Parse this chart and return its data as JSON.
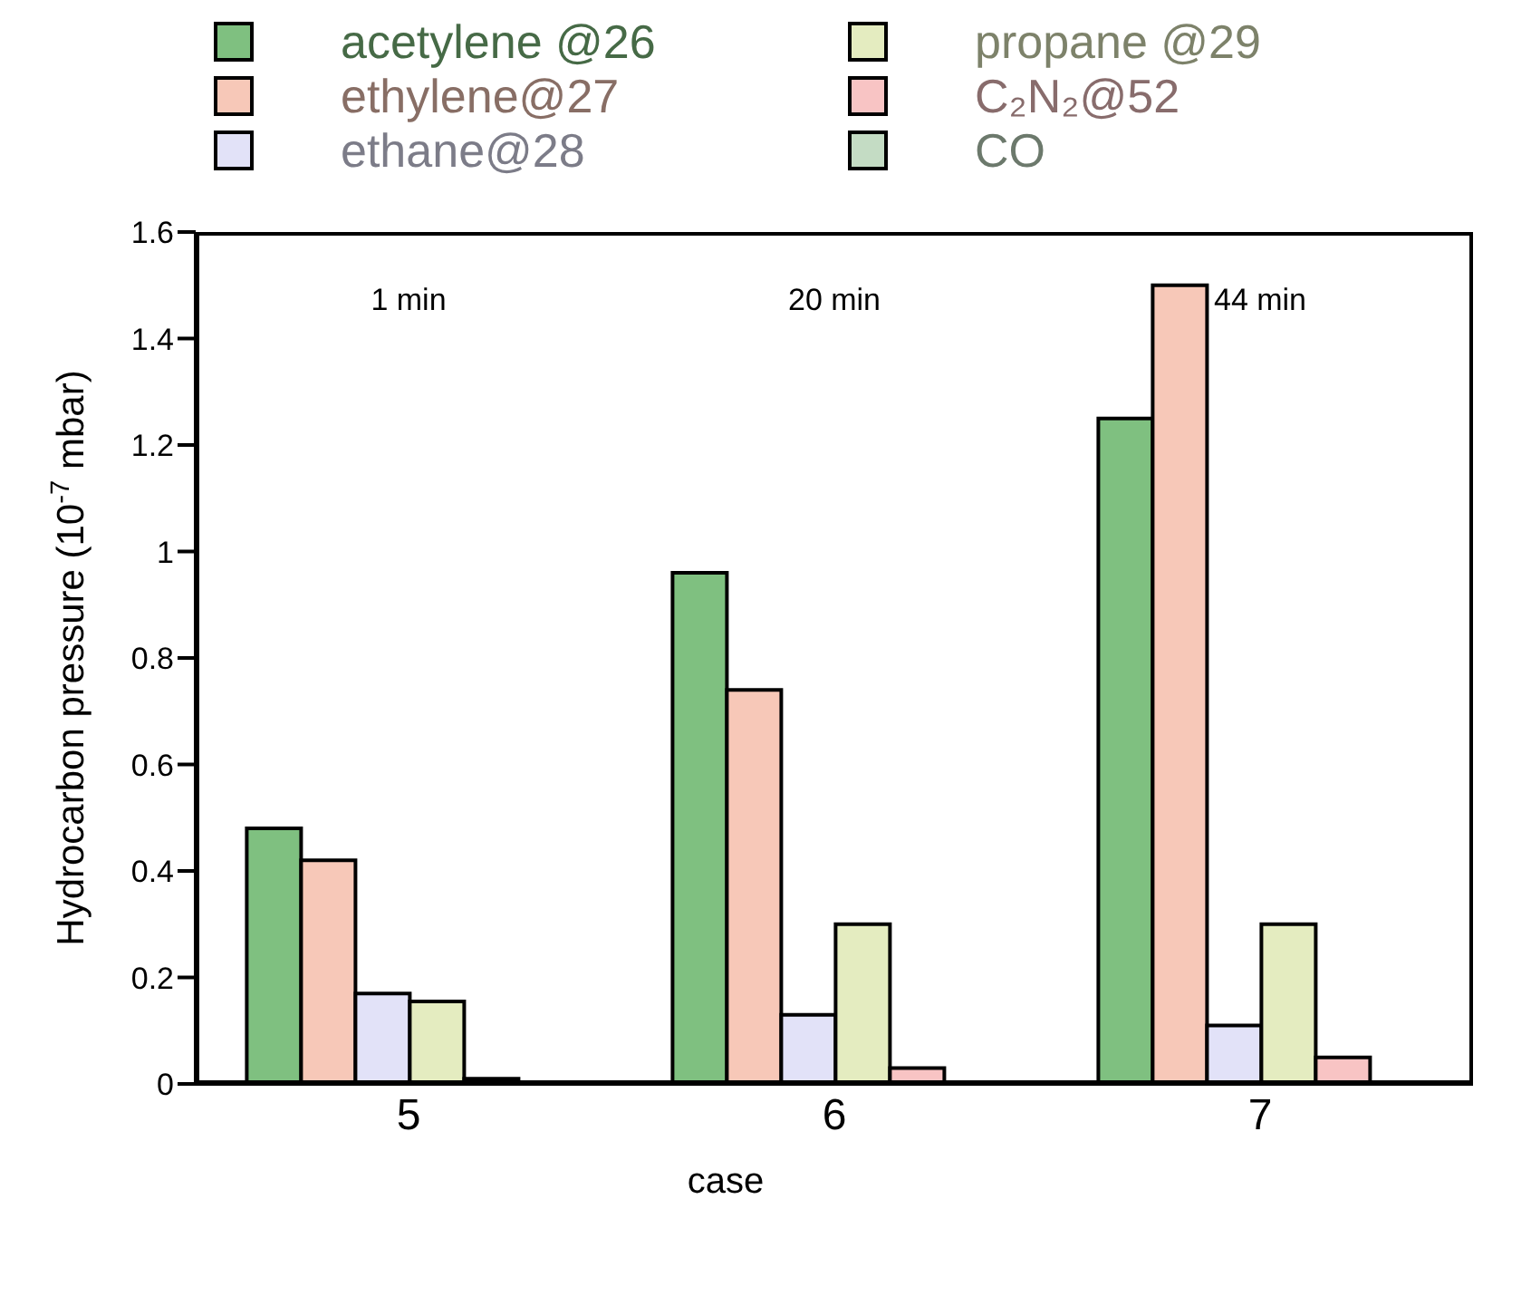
{
  "chart_data": {
    "type": "bar",
    "xlabel": "case",
    "ylabel": "Hydrocarbon pressure (10$^{-7}$ mbar)",
    "categories": [
      "5",
      "6",
      "7"
    ],
    "series": [
      {
        "name": "acetylene @26",
        "color": "#7fc080",
        "values": [
          0.48,
          0.96,
          1.25
        ]
      },
      {
        "name": "ethylene@27",
        "color": "#f7c8b8",
        "values": [
          0.42,
          0.74,
          1.5
        ]
      },
      {
        "name": "ethane@28",
        "color": "#e2e2f8",
        "values": [
          0.17,
          0.13,
          0.11
        ]
      },
      {
        "name": "propane @29",
        "color": "#e4ecc0",
        "values": [
          0.155,
          0.3,
          0.3
        ]
      },
      {
        "name": "C₂N₂@52",
        "color": "#f8c4c4",
        "values": [
          0.01,
          0.03,
          0.05
        ]
      },
      {
        "name": "CO",
        "color": "#c4dcc4",
        "values": [
          null,
          null,
          null
        ]
      }
    ],
    "ylim": [
      0,
      1.6
    ],
    "yticks": [
      0,
      0.2,
      0.4,
      0.6,
      0.8,
      1,
      1.2,
      1.4,
      1.6
    ],
    "annotations": [
      "1 min",
      "20 min",
      "44 min"
    ],
    "legend": "top"
  }
}
